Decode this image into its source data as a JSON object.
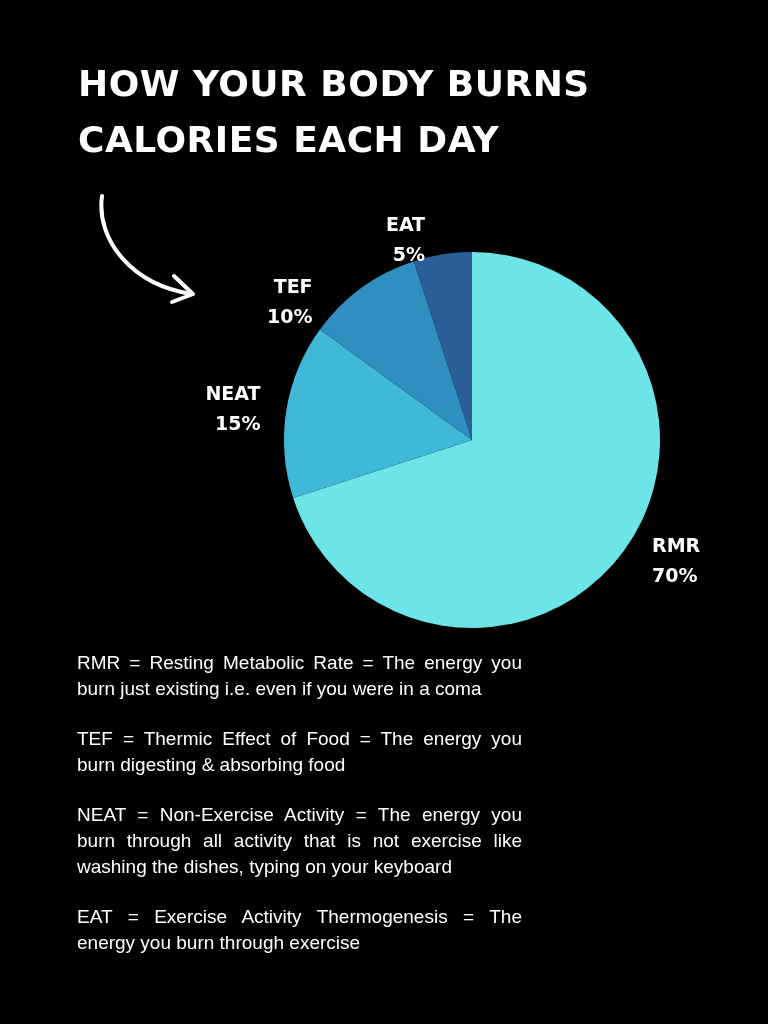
{
  "chart_data": {
    "type": "pie",
    "title": "HOW YOUR BODY BURNS CALORIES EACH DAY",
    "categories": [
      "RMR",
      "NEAT",
      "TEF",
      "EAT"
    ],
    "values": [
      70,
      15,
      10,
      5
    ],
    "value_labels": [
      "70%",
      "15%",
      "10%",
      "5%"
    ],
    "colors": [
      "#6ce5e8",
      "#40b8d8",
      "#2e8fc0",
      "#2c5e9a"
    ],
    "annotations": [
      "RMR = Resting Metabolic Rate = The energy you burn just existing i.e. even if you were in a coma",
      "TEF = Thermic Effect of Food = The energy you burn digesting & absorbing food",
      "NEAT = Non-Exercise Activity = The energy you burn through all activity that is not exercise like washing the dishes, typing on your keyboard",
      "EAT = Exercise Activity Thermogenesis = The energy you burn through exercise"
    ]
  }
}
